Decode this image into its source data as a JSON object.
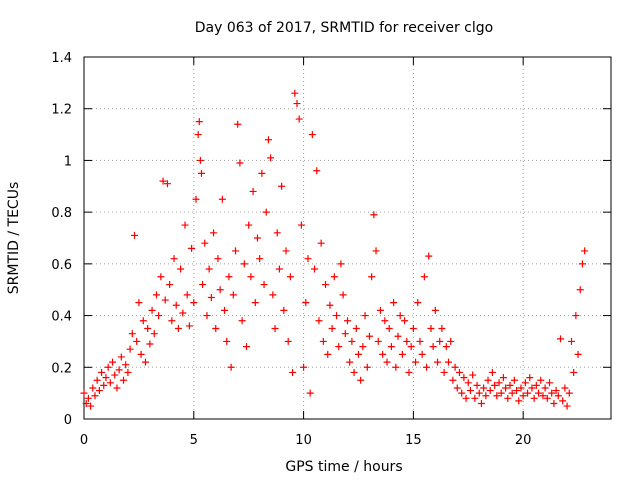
{
  "chart_data": {
    "type": "scatter",
    "title": "Day 063 of 2017, SRMTID for receiver clgo",
    "xlabel": "GPS time / hours",
    "ylabel": "SRMTID / TECUs",
    "xlim": [
      0,
      24
    ],
    "ylim": [
      0,
      1.4
    ],
    "xticks": [
      0,
      5,
      10,
      15,
      20
    ],
    "xtick_labels": [
      "0",
      "5",
      "10",
      "15",
      "20"
    ],
    "yticks": [
      0,
      0.2,
      0.4,
      0.6,
      0.8,
      1.0,
      1.2,
      1.4
    ],
    "ytick_labels": [
      "0",
      "0.2",
      "0.4",
      "0.6",
      "0.8",
      "1",
      "1.2",
      "1.4"
    ],
    "grid": true,
    "marker": "+",
    "color": "#ff0000",
    "series": [
      {
        "name": "SRMTID",
        "points": [
          [
            0.0,
            0.1
          ],
          [
            0.1,
            0.06
          ],
          [
            0.2,
            0.08
          ],
          [
            0.3,
            0.05
          ],
          [
            0.4,
            0.12
          ],
          [
            0.5,
            0.09
          ],
          [
            0.6,
            0.15
          ],
          [
            0.7,
            0.11
          ],
          [
            0.8,
            0.18
          ],
          [
            0.9,
            0.13
          ],
          [
            1.0,
            0.16
          ],
          [
            1.1,
            0.2
          ],
          [
            1.2,
            0.14
          ],
          [
            1.3,
            0.22
          ],
          [
            1.4,
            0.17
          ],
          [
            1.5,
            0.12
          ],
          [
            1.6,
            0.19
          ],
          [
            1.7,
            0.24
          ],
          [
            1.8,
            0.15
          ],
          [
            1.9,
            0.21
          ],
          [
            2.0,
            0.18
          ],
          [
            2.1,
            0.27
          ],
          [
            2.2,
            0.33
          ],
          [
            2.3,
            0.71
          ],
          [
            2.4,
            0.3
          ],
          [
            2.5,
            0.45
          ],
          [
            2.6,
            0.25
          ],
          [
            2.7,
            0.38
          ],
          [
            2.8,
            0.22
          ],
          [
            2.9,
            0.35
          ],
          [
            3.0,
            0.29
          ],
          [
            3.1,
            0.42
          ],
          [
            3.2,
            0.33
          ],
          [
            3.3,
            0.48
          ],
          [
            3.4,
            0.4
          ],
          [
            3.5,
            0.55
          ],
          [
            3.6,
            0.92
          ],
          [
            3.7,
            0.46
          ],
          [
            3.8,
            0.91
          ],
          [
            3.9,
            0.52
          ],
          [
            4.0,
            0.38
          ],
          [
            4.1,
            0.62
          ],
          [
            4.2,
            0.44
          ],
          [
            4.3,
            0.35
          ],
          [
            4.4,
            0.58
          ],
          [
            4.5,
            0.41
          ],
          [
            4.6,
            0.75
          ],
          [
            4.7,
            0.48
          ],
          [
            4.8,
            0.36
          ],
          [
            4.9,
            0.66
          ],
          [
            5.0,
            0.45
          ],
          [
            5.1,
            0.85
          ],
          [
            5.2,
            1.1
          ],
          [
            5.25,
            1.15
          ],
          [
            5.3,
            1.0
          ],
          [
            5.35,
            0.95
          ],
          [
            5.4,
            0.52
          ],
          [
            5.5,
            0.68
          ],
          [
            5.6,
            0.4
          ],
          [
            5.7,
            0.58
          ],
          [
            5.8,
            0.47
          ],
          [
            5.9,
            0.72
          ],
          [
            6.0,
            0.35
          ],
          [
            6.1,
            0.62
          ],
          [
            6.2,
            0.5
          ],
          [
            6.3,
            0.85
          ],
          [
            6.4,
            0.42
          ],
          [
            6.5,
            0.3
          ],
          [
            6.6,
            0.55
          ],
          [
            6.7,
            0.2
          ],
          [
            6.8,
            0.48
          ],
          [
            6.9,
            0.65
          ],
          [
            7.0,
            1.14
          ],
          [
            7.1,
            0.99
          ],
          [
            7.2,
            0.38
          ],
          [
            7.3,
            0.6
          ],
          [
            7.4,
            0.28
          ],
          [
            7.5,
            0.75
          ],
          [
            7.6,
            0.55
          ],
          [
            7.7,
            0.88
          ],
          [
            7.8,
            0.45
          ],
          [
            7.9,
            0.7
          ],
          [
            8.0,
            0.62
          ],
          [
            8.1,
            0.95
          ],
          [
            8.2,
            0.52
          ],
          [
            8.3,
            0.8
          ],
          [
            8.4,
            1.08
          ],
          [
            8.5,
            1.01
          ],
          [
            8.6,
            0.48
          ],
          [
            8.7,
            0.35
          ],
          [
            8.8,
            0.72
          ],
          [
            8.9,
            0.58
          ],
          [
            9.0,
            0.9
          ],
          [
            9.1,
            0.42
          ],
          [
            9.2,
            0.65
          ],
          [
            9.3,
            0.3
          ],
          [
            9.4,
            0.55
          ],
          [
            9.5,
            0.18
          ],
          [
            9.6,
            1.26
          ],
          [
            9.7,
            1.22
          ],
          [
            9.8,
            1.16
          ],
          [
            9.9,
            0.75
          ],
          [
            10.0,
            0.2
          ],
          [
            10.1,
            0.45
          ],
          [
            10.2,
            0.62
          ],
          [
            10.3,
            0.1
          ],
          [
            10.4,
            1.1
          ],
          [
            10.5,
            0.58
          ],
          [
            10.6,
            0.96
          ],
          [
            10.7,
            0.38
          ],
          [
            10.8,
            0.68
          ],
          [
            10.9,
            0.3
          ],
          [
            11.0,
            0.52
          ],
          [
            11.1,
            0.25
          ],
          [
            11.2,
            0.44
          ],
          [
            11.3,
            0.35
          ],
          [
            11.4,
            0.55
          ],
          [
            11.5,
            0.4
          ],
          [
            11.6,
            0.28
          ],
          [
            11.7,
            0.6
          ],
          [
            11.8,
            0.48
          ],
          [
            11.9,
            0.33
          ],
          [
            12.0,
            0.38
          ],
          [
            12.1,
            0.22
          ],
          [
            12.2,
            0.3
          ],
          [
            12.3,
            0.18
          ],
          [
            12.4,
            0.35
          ],
          [
            12.5,
            0.25
          ],
          [
            12.6,
            0.15
          ],
          [
            12.7,
            0.28
          ],
          [
            12.8,
            0.4
          ],
          [
            12.9,
            0.2
          ],
          [
            13.0,
            0.32
          ],
          [
            13.1,
            0.55
          ],
          [
            13.2,
            0.79
          ],
          [
            13.3,
            0.65
          ],
          [
            13.4,
            0.3
          ],
          [
            13.5,
            0.42
          ],
          [
            13.6,
            0.25
          ],
          [
            13.7,
            0.38
          ],
          [
            13.8,
            0.22
          ],
          [
            13.9,
            0.35
          ],
          [
            14.0,
            0.28
          ],
          [
            14.1,
            0.45
          ],
          [
            14.2,
            0.2
          ],
          [
            14.3,
            0.32
          ],
          [
            14.4,
            0.4
          ],
          [
            14.5,
            0.25
          ],
          [
            14.6,
            0.38
          ],
          [
            14.7,
            0.3
          ],
          [
            14.8,
            0.18
          ],
          [
            14.9,
            0.28
          ],
          [
            15.0,
            0.35
          ],
          [
            15.1,
            0.22
          ],
          [
            15.2,
            0.45
          ],
          [
            15.3,
            0.3
          ],
          [
            15.4,
            0.25
          ],
          [
            15.5,
            0.55
          ],
          [
            15.6,
            0.2
          ],
          [
            15.7,
            0.63
          ],
          [
            15.8,
            0.35
          ],
          [
            15.9,
            0.28
          ],
          [
            16.0,
            0.42
          ],
          [
            16.1,
            0.22
          ],
          [
            16.2,
            0.3
          ],
          [
            16.3,
            0.35
          ],
          [
            16.4,
            0.18
          ],
          [
            16.5,
            0.28
          ],
          [
            16.6,
            0.22
          ],
          [
            16.7,
            0.3
          ],
          [
            16.8,
            0.15
          ],
          [
            16.9,
            0.2
          ],
          [
            17.0,
            0.12
          ],
          [
            17.1,
            0.18
          ],
          [
            17.2,
            0.1
          ],
          [
            17.3,
            0.16
          ],
          [
            17.4,
            0.08
          ],
          [
            17.5,
            0.14
          ],
          [
            17.6,
            0.11
          ],
          [
            17.7,
            0.17
          ],
          [
            17.8,
            0.08
          ],
          [
            17.9,
            0.13
          ],
          [
            18.0,
            0.1
          ],
          [
            18.1,
            0.06
          ],
          [
            18.2,
            0.12
          ],
          [
            18.3,
            0.09
          ],
          [
            18.4,
            0.15
          ],
          [
            18.5,
            0.11
          ],
          [
            18.6,
            0.18
          ],
          [
            18.7,
            0.13
          ],
          [
            18.8,
            0.09
          ],
          [
            18.9,
            0.14
          ],
          [
            19.0,
            0.1
          ],
          [
            19.1,
            0.16
          ],
          [
            19.2,
            0.12
          ],
          [
            19.3,
            0.08
          ],
          [
            19.4,
            0.13
          ],
          [
            19.5,
            0.1
          ],
          [
            19.6,
            0.15
          ],
          [
            19.7,
            0.11
          ],
          [
            19.8,
            0.07
          ],
          [
            19.9,
            0.12
          ],
          [
            20.0,
            0.09
          ],
          [
            20.1,
            0.14
          ],
          [
            20.2,
            0.1
          ],
          [
            20.3,
            0.16
          ],
          [
            20.4,
            0.12
          ],
          [
            20.5,
            0.08
          ],
          [
            20.6,
            0.13
          ],
          [
            20.7,
            0.1
          ],
          [
            20.8,
            0.15
          ],
          [
            20.9,
            0.09
          ],
          [
            21.0,
            0.12
          ],
          [
            21.1,
            0.08
          ],
          [
            21.2,
            0.14
          ],
          [
            21.3,
            0.1
          ],
          [
            21.4,
            0.06
          ],
          [
            21.5,
            0.11
          ],
          [
            21.6,
            0.09
          ],
          [
            21.7,
            0.31
          ],
          [
            21.8,
            0.07
          ],
          [
            21.9,
            0.12
          ],
          [
            22.0,
            0.05
          ],
          [
            22.1,
            0.1
          ],
          [
            22.2,
            0.3
          ],
          [
            22.3,
            0.18
          ],
          [
            22.4,
            0.4
          ],
          [
            22.5,
            0.25
          ],
          [
            22.6,
            0.5
          ],
          [
            22.7,
            0.6
          ],
          [
            22.8,
            0.65
          ]
        ]
      }
    ]
  }
}
